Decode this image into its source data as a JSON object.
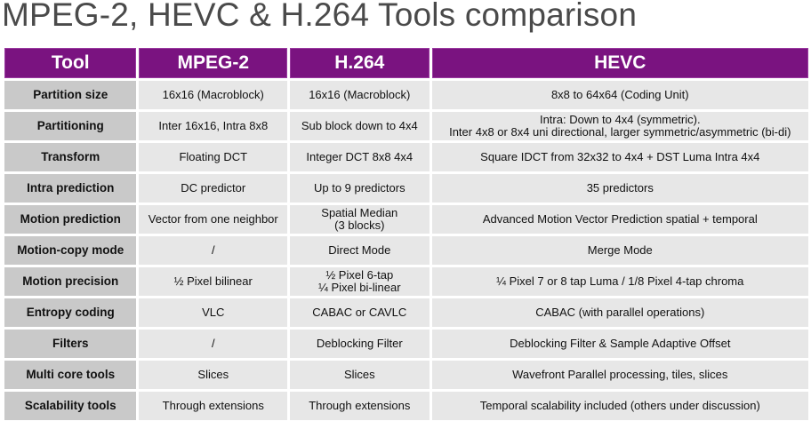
{
  "title": "MPEG-2, HEVC & H.264 Tools comparison",
  "headers": [
    "Tool",
    "MPEG-2",
    "H.264",
    "HEVC"
  ],
  "rows": [
    {
      "tool": "Partition size",
      "mpeg2": [
        "16x16 (Macroblock)"
      ],
      "h264": [
        "16x16 (Macroblock)"
      ],
      "hevc": [
        "8x8 to 64x64 (Coding Unit)"
      ]
    },
    {
      "tool": "Partitioning",
      "mpeg2": [
        "Inter 16x16, Intra 8x8"
      ],
      "h264": [
        "Sub block down to 4x4"
      ],
      "hevc": [
        "Intra: Down to 4x4 (symmetric).",
        "Inter 4x8 or 8x4 uni directional, larger symmetric/asymmetric  (bi-di)"
      ]
    },
    {
      "tool": "Transform",
      "mpeg2": [
        "Floating DCT"
      ],
      "h264": [
        "Integer DCT 8x8  4x4"
      ],
      "hevc": [
        "Square IDCT from 32x32 to 4x4 + DST Luma Intra 4x4"
      ]
    },
    {
      "tool": "Intra prediction",
      "mpeg2": [
        "DC predictor"
      ],
      "h264": [
        "Up to 9 predictors"
      ],
      "hevc": [
        "35 predictors"
      ]
    },
    {
      "tool": "Motion prediction",
      "mpeg2": [
        "Vector from one neighbor"
      ],
      "h264": [
        "Spatial Median",
        "(3 blocks)"
      ],
      "hevc": [
        "Advanced Motion Vector Prediction spatial + temporal"
      ]
    },
    {
      "tool": "Motion-copy mode",
      "mpeg2": [
        "/"
      ],
      "h264": [
        "Direct Mode"
      ],
      "hevc": [
        "Merge Mode"
      ]
    },
    {
      "tool": "Motion precision",
      "mpeg2": [
        "½ Pixel  bilinear"
      ],
      "h264": [
        "½ Pixel  6-tap",
        "¼ Pixel  bi-linear"
      ],
      "hevc": [
        "¼ Pixel  7 or 8 tap Luma / 1/8 Pixel  4-tap chroma"
      ]
    },
    {
      "tool": "Entropy coding",
      "mpeg2": [
        "VLC"
      ],
      "h264": [
        "CABAC  or CAVLC"
      ],
      "hevc": [
        "CABAC  (with parallel operations)"
      ]
    },
    {
      "tool": "Filters",
      "mpeg2": [
        "/"
      ],
      "h264": [
        "Deblocking Filter"
      ],
      "hevc": [
        "Deblocking Filter &  Sample Adaptive Offset"
      ]
    },
    {
      "tool": "Multi core tools",
      "mpeg2": [
        "Slices"
      ],
      "h264": [
        "Slices"
      ],
      "hevc": [
        "Wavefront Parallel processing, tiles, slices"
      ]
    },
    {
      "tool": "Scalability tools",
      "mpeg2": [
        "Through extensions"
      ],
      "h264": [
        "Through extensions"
      ],
      "hevc": [
        "Temporal scalability included (others under discussion)"
      ]
    }
  ]
}
